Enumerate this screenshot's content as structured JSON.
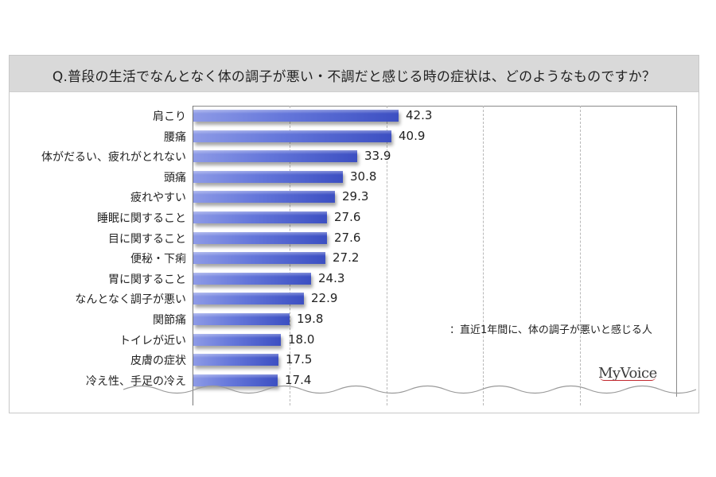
{
  "title": "Q.普段の生活でなんとなく体の調子が悪い・不調だと感じる時の症状は、どのようなものですか？",
  "note": "：直近1年間に、体の調子が悪いと感じる人",
  "logo": "MyVoice",
  "colors": {
    "bar_light": "#8d9ae6",
    "bar_dark": "#3c4fc2",
    "title_bg": "#d9d9d9",
    "gridline": "#b8b8b8",
    "logo_accent": "#c2272d"
  },
  "rows": [
    {
      "label": "肩こり",
      "value": "42.3"
    },
    {
      "label": "腰痛",
      "value": "40.9"
    },
    {
      "label": "体がだるい、疲れがとれない",
      "value": "33.9"
    },
    {
      "label": "頭痛",
      "value": "30.8"
    },
    {
      "label": "疲れやすい",
      "value": "29.3"
    },
    {
      "label": "睡眠に関すること",
      "value": "27.6"
    },
    {
      "label": "目に関すること",
      "value": "27.6"
    },
    {
      "label": "便秘・下痢",
      "value": "27.2"
    },
    {
      "label": "胃に関すること",
      "value": "24.3"
    },
    {
      "label": "なんとなく調子が悪い",
      "value": "22.9"
    },
    {
      "label": "関節痛",
      "value": "19.8"
    },
    {
      "label": "トイレが近い",
      "value": "18.0"
    },
    {
      "label": "皮膚の症状",
      "value": "17.5"
    },
    {
      "label": "冷え性、手足の冷え",
      "value": "17.4"
    }
  ],
  "chart_data": {
    "type": "bar",
    "orientation": "horizontal",
    "title": "Q.普段の生活でなんとなく体の調子が悪い・不調だと感じる時の症状は、どのようなものですか？",
    "categories": [
      "肩こり",
      "腰痛",
      "体がだるい、疲れがとれない",
      "頭痛",
      "疲れやすい",
      "睡眠に関すること",
      "目に関すること",
      "便秘・下痢",
      "胃に関すること",
      "なんとなく調子が悪い",
      "関節痛",
      "トイレが近い",
      "皮膚の症状",
      "冷え性、手足の冷え"
    ],
    "values": [
      42.3,
      40.9,
      33.9,
      30.8,
      29.3,
      27.6,
      27.6,
      27.2,
      24.3,
      22.9,
      19.8,
      18.0,
      17.5,
      17.4
    ],
    "xlabel": "",
    "ylabel": "",
    "xlim": [
      0,
      100
    ],
    "gridlines": [
      20,
      40,
      60,
      80
    ],
    "grid": true,
    "annotation": "：直近1年間に、体の調子が悪いと感じる人",
    "legend": null,
    "source_logo": "MyVoice"
  }
}
